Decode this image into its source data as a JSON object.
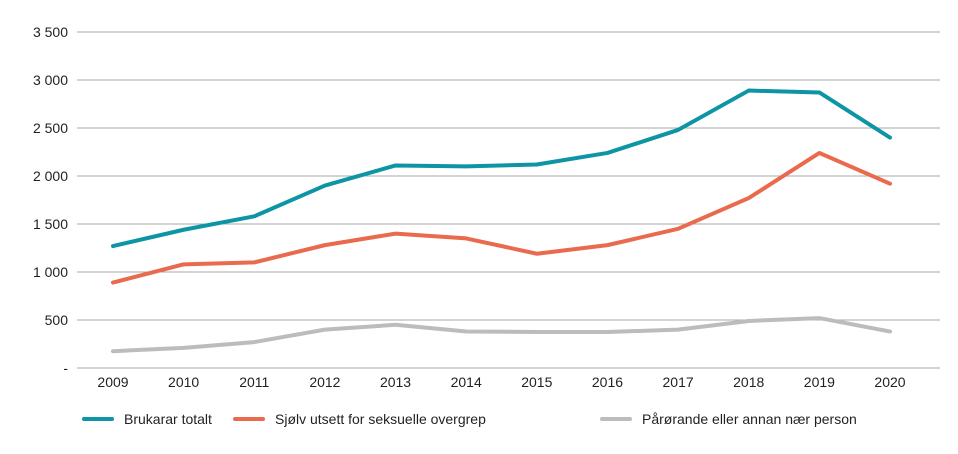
{
  "figure": {
    "background_color": "#ffffff",
    "text_color": "#231f20",
    "gridline_color": "#a9a9a9"
  },
  "chart_data": {
    "type": "line",
    "title": "",
    "xlabel": "",
    "ylabel": "",
    "grid": "horizontal",
    "legend_position": "bottom",
    "categories": [
      "2009",
      "2010",
      "2011",
      "2012",
      "2013",
      "2014",
      "2015",
      "2016",
      "2017",
      "2018",
      "2019",
      "2020"
    ],
    "y_axis": {
      "min": 0,
      "max": 3500,
      "step": 500,
      "tick_labels": [
        "-",
        "500",
        "1 000",
        "1 500",
        "2 000",
        "2 500",
        "3 000",
        "3 500"
      ]
    },
    "series": [
      {
        "name": "Brukarar totalt",
        "color": "#0e95a5",
        "values": [
          1270,
          1440,
          1580,
          1900,
          2110,
          2100,
          2120,
          2240,
          2480,
          2890,
          2870,
          2400
        ]
      },
      {
        "name": "Sjølv utsett for seksuelle overgrep",
        "color": "#e96a4d",
        "values": [
          890,
          1080,
          1100,
          1280,
          1400,
          1350,
          1190,
          1280,
          1450,
          1770,
          2240,
          1920
        ]
      },
      {
        "name": "Pårørande eller annan nær person",
        "color": "#bcbcbc",
        "values": [
          175,
          210,
          270,
          400,
          450,
          380,
          375,
          375,
          400,
          490,
          520,
          380
        ]
      }
    ]
  }
}
